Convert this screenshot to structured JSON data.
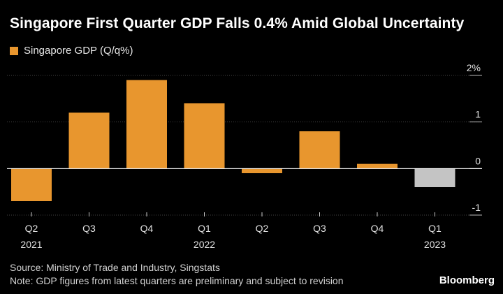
{
  "header": {
    "title": "Singapore First Quarter GDP Falls 0.4% Amid Global Uncertainty"
  },
  "colors": {
    "background": "#000000",
    "bar": "#e8962e",
    "bar_latest": "#c4c4c4",
    "axis": "#ffffff",
    "grid": "#444444"
  },
  "chart_data": {
    "type": "bar",
    "categories": [
      "Q2 2021",
      "Q3",
      "Q4",
      "Q1 2022",
      "Q2",
      "Q3",
      "Q4",
      "Q1 2023"
    ],
    "tick_labels": [
      {
        "top": "Q2",
        "bottom": "2021"
      },
      {
        "top": "Q3",
        "bottom": ""
      },
      {
        "top": "Q4",
        "bottom": ""
      },
      {
        "top": "Q1",
        "bottom": "2022"
      },
      {
        "top": "Q2",
        "bottom": ""
      },
      {
        "top": "Q3",
        "bottom": ""
      },
      {
        "top": "Q4",
        "bottom": ""
      },
      {
        "top": "Q1",
        "bottom": "2023"
      }
    ],
    "series": [
      {
        "name": "Singapore GDP (Q/q%)",
        "values": [
          -0.7,
          1.2,
          1.9,
          1.4,
          -0.1,
          0.8,
          0.1,
          -0.4
        ]
      }
    ],
    "highlight_last_bar": true,
    "ylim": [
      -1,
      2
    ],
    "yticks": [
      {
        "value": 2,
        "label": "2%"
      },
      {
        "value": 1,
        "label": "1"
      },
      {
        "value": 0,
        "label": "0"
      },
      {
        "value": -1,
        "label": "-1"
      }
    ],
    "y_axis_side": "right",
    "grid": true,
    "legend": "top-left"
  },
  "footer": {
    "source": "Source: Ministry of Trade and Industry, Singstats",
    "note": "Note: GDP figures from latest quarters are preliminary and subject to revision",
    "brand": "Bloomberg"
  }
}
